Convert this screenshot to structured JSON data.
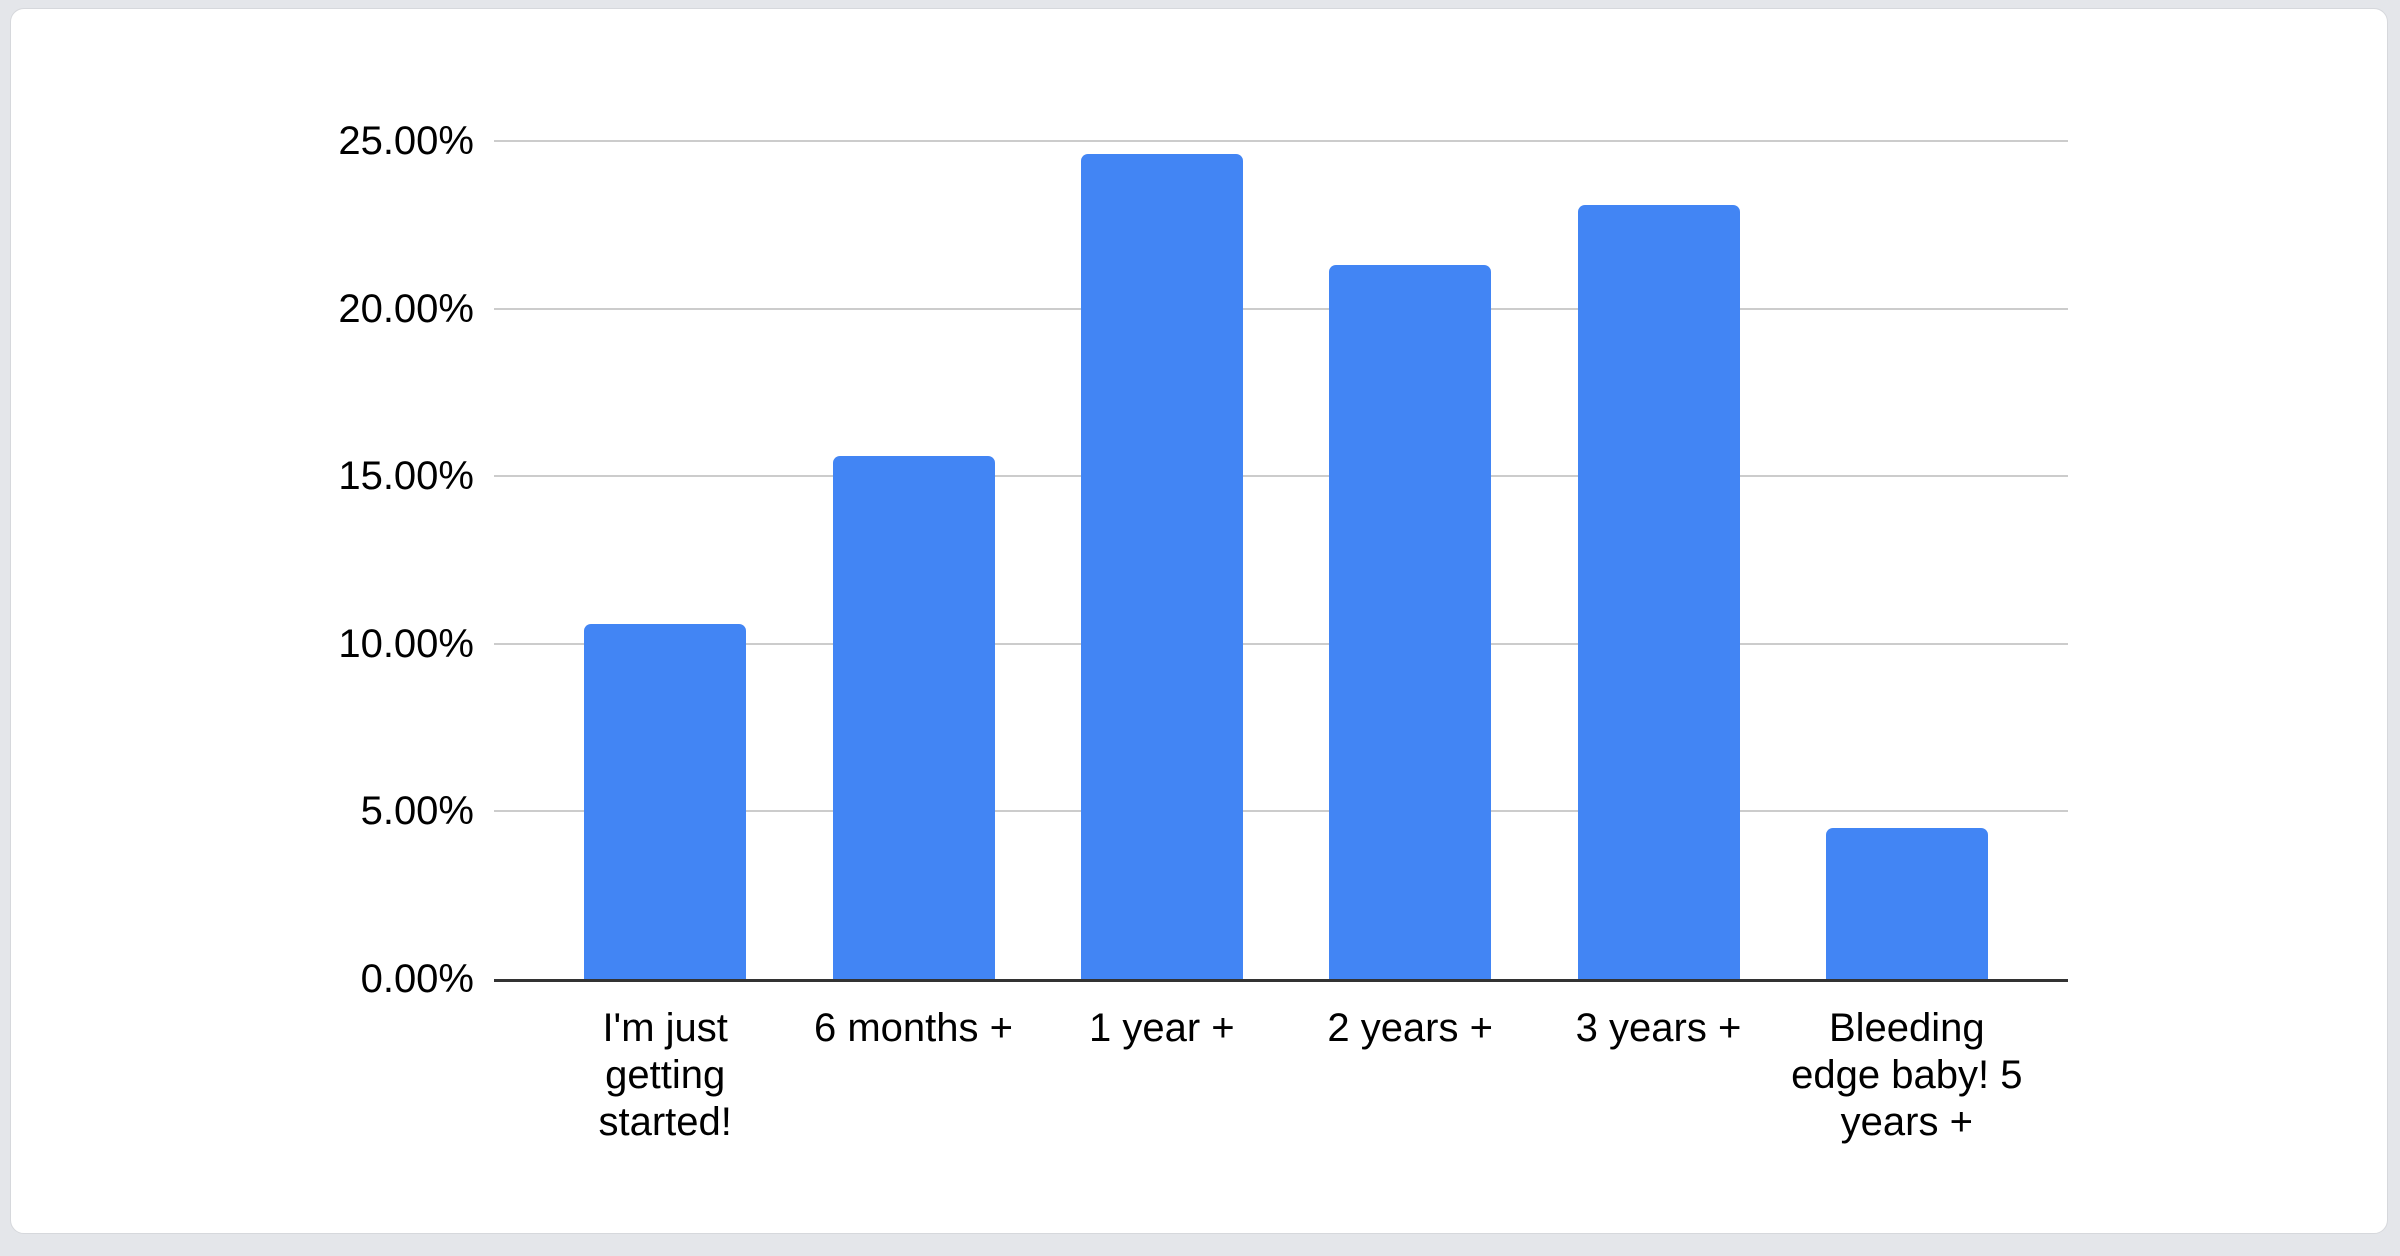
{
  "chart_data": {
    "type": "bar",
    "title": "",
    "xlabel": "",
    "ylabel": "",
    "categories": [
      "I'm just getting started!",
      "6 months +",
      "1 year +",
      "2 years +",
      "3 years +",
      "Bleeding edge baby! 5 years +"
    ],
    "values": [
      10.6,
      15.6,
      24.6,
      21.3,
      23.1,
      4.5
    ],
    "value_unit": "percent",
    "y_ticks": [
      {
        "value": 0,
        "label": "0.00%"
      },
      {
        "value": 5,
        "label": "5.00%"
      },
      {
        "value": 10,
        "label": "10.00%"
      },
      {
        "value": 15,
        "label": "15.00%"
      },
      {
        "value": 20,
        "label": "20.00%"
      },
      {
        "value": 25,
        "label": "25.00%"
      }
    ],
    "ylim": [
      0,
      25
    ],
    "grid": true,
    "legend_position": "none",
    "data_labels": false
  },
  "colors": {
    "bar": "#4285F4",
    "gridline": "#cccccc",
    "axis_line": "#333333",
    "text": "#000000",
    "card_background": "#ffffff",
    "page_background": "#e4e6ea"
  }
}
